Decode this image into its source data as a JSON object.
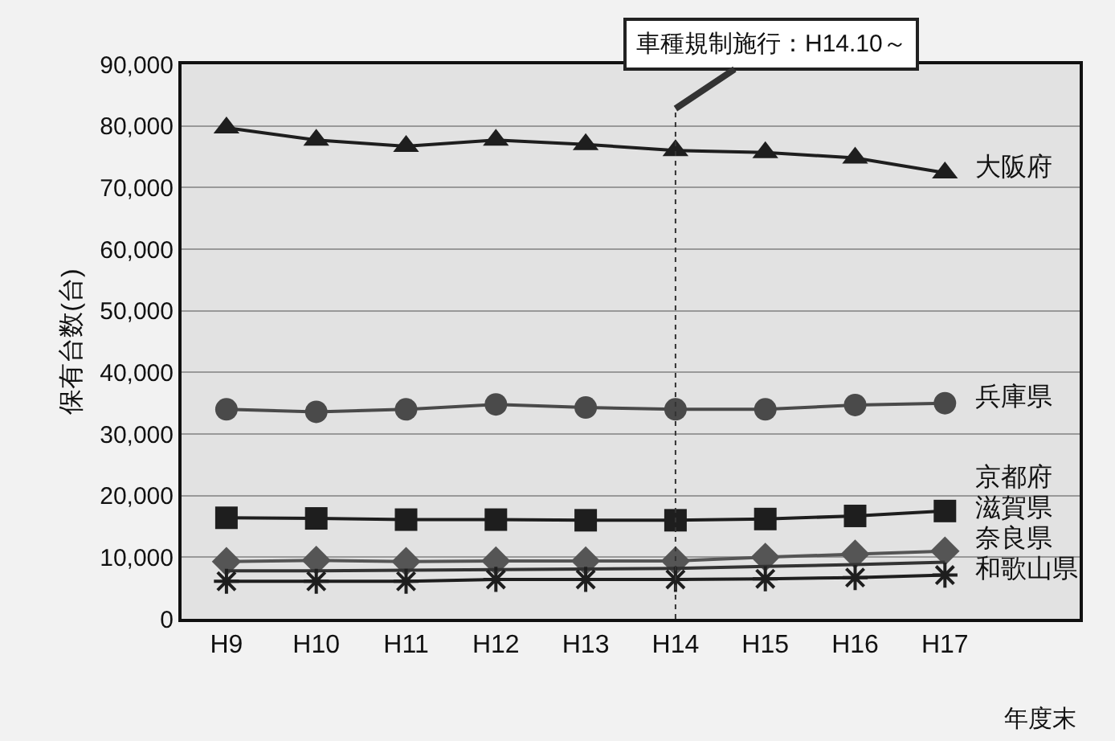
{
  "chart_data": {
    "type": "line",
    "ylabel": "保有台数(台)",
    "xlabel": "年度末",
    "categories": [
      "H9",
      "H10",
      "H11",
      "H12",
      "H13",
      "H14",
      "H15",
      "H16",
      "H17"
    ],
    "ylim": [
      0,
      90000
    ],
    "yticks": [
      {
        "value": 0,
        "label": "0"
      },
      {
        "value": 10000,
        "label": "10,000"
      },
      {
        "value": 20000,
        "label": "20,000"
      },
      {
        "value": 30000,
        "label": "30,000"
      },
      {
        "value": 40000,
        "label": "40,000"
      },
      {
        "value": 50000,
        "label": "50,000"
      },
      {
        "value": 60000,
        "label": "60,000"
      },
      {
        "value": 70000,
        "label": "70,000"
      },
      {
        "value": 80000,
        "label": "80,000"
      },
      {
        "value": 90000,
        "label": "90,000"
      }
    ],
    "grid": "y",
    "legend": false,
    "line_style": "solid",
    "series": [
      {
        "name": "大阪府",
        "color": "#1e1e1e",
        "marker": "triangle",
        "values": [
          79700,
          77700,
          76700,
          77700,
          77000,
          76000,
          75700,
          74800,
          72400
        ]
      },
      {
        "name": "兵庫県",
        "color": "#4a4a4a",
        "marker": "circle",
        "values": [
          34000,
          33600,
          34000,
          34800,
          34300,
          34000,
          34000,
          34700,
          35000
        ]
      },
      {
        "name": "京都府",
        "color": "#1e1e1e",
        "marker": "square",
        "values": [
          16400,
          16300,
          16100,
          16100,
          16000,
          16000,
          16200,
          16700,
          17500
        ]
      },
      {
        "name": "滋賀県",
        "color": "#555555",
        "marker": "diamond",
        "values": [
          9300,
          9500,
          9300,
          9400,
          9400,
          9400,
          10000,
          10500,
          11000
        ]
      },
      {
        "name": "奈良県",
        "color": "#333333",
        "marker": "none",
        "values": [
          7800,
          7800,
          7900,
          8000,
          8100,
          8200,
          8500,
          8800,
          9200
        ]
      },
      {
        "name": "和歌山県",
        "color": "#1e1e1e",
        "marker": "cross",
        "values": [
          6100,
          6100,
          6100,
          6400,
          6400,
          6400,
          6500,
          6700,
          7100
        ]
      }
    ],
    "ref_lines": [
      {
        "axis": "x",
        "value": "H14",
        "label": "車種規制施行：H14.10～",
        "line_style": "dotted",
        "color": "#333333"
      }
    ]
  }
}
